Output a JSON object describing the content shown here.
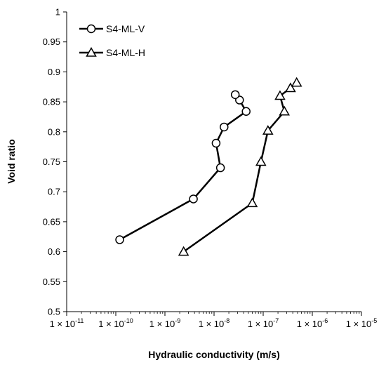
{
  "chart_data": {
    "type": "scatter",
    "xlabel": "Hydraulic conductivity (m/s)",
    "ylabel": "Void ratio",
    "x_scale": "log",
    "xlim": [
      1e-11,
      1e-05
    ],
    "ylim": [
      0.5,
      1.0
    ],
    "y_ticks": [
      "0.5",
      "0.55",
      "0.6",
      "0.65",
      "0.7",
      "0.75",
      "0.8",
      "0.85",
      "0.9",
      "0.95",
      "1"
    ],
    "x_ticks": [
      {
        "mantissa": "1 × 10",
        "exp": "-11",
        "value": 1e-11
      },
      {
        "mantissa": "1 × 10",
        "exp": "-10",
        "value": 1e-10
      },
      {
        "mantissa": "1 × 10",
        "exp": "-9",
        "value": 1e-09
      },
      {
        "mantissa": "1 × 10",
        "exp": "-8",
        "value": 1e-08
      },
      {
        "mantissa": "1 × 10",
        "exp": "-7",
        "value": 1e-07
      },
      {
        "mantissa": "1 × 10",
        "exp": "-6",
        "value": 1e-06
      },
      {
        "mantissa": "1 × 10",
        "exp": "-5",
        "value": 1e-05
      }
    ],
    "grid": false,
    "legend_position": "top-left",
    "line_color": "#000000",
    "series": [
      {
        "name": "S4-ML-V",
        "marker": "circle",
        "points": [
          {
            "x": 1.2e-10,
            "y": 0.62
          },
          {
            "x": 3.8e-09,
            "y": 0.688
          },
          {
            "x": 1.35e-08,
            "y": 0.74
          },
          {
            "x": 1.1e-08,
            "y": 0.781
          },
          {
            "x": 1.6e-08,
            "y": 0.808
          },
          {
            "x": 4.5e-08,
            "y": 0.834
          },
          {
            "x": 3.3e-08,
            "y": 0.853
          },
          {
            "x": 2.7e-08,
            "y": 0.862
          }
        ]
      },
      {
        "name": "S4-ML-H",
        "marker": "triangle",
        "points": [
          {
            "x": 2.4e-09,
            "y": 0.6
          },
          {
            "x": 6e-08,
            "y": 0.681
          },
          {
            "x": 9e-08,
            "y": 0.75
          },
          {
            "x": 1.25e-07,
            "y": 0.802
          },
          {
            "x": 2.7e-07,
            "y": 0.834
          },
          {
            "x": 2.2e-07,
            "y": 0.86
          },
          {
            "x": 3.6e-07,
            "y": 0.873
          },
          {
            "x": 4.8e-07,
            "y": 0.882
          }
        ]
      }
    ]
  }
}
